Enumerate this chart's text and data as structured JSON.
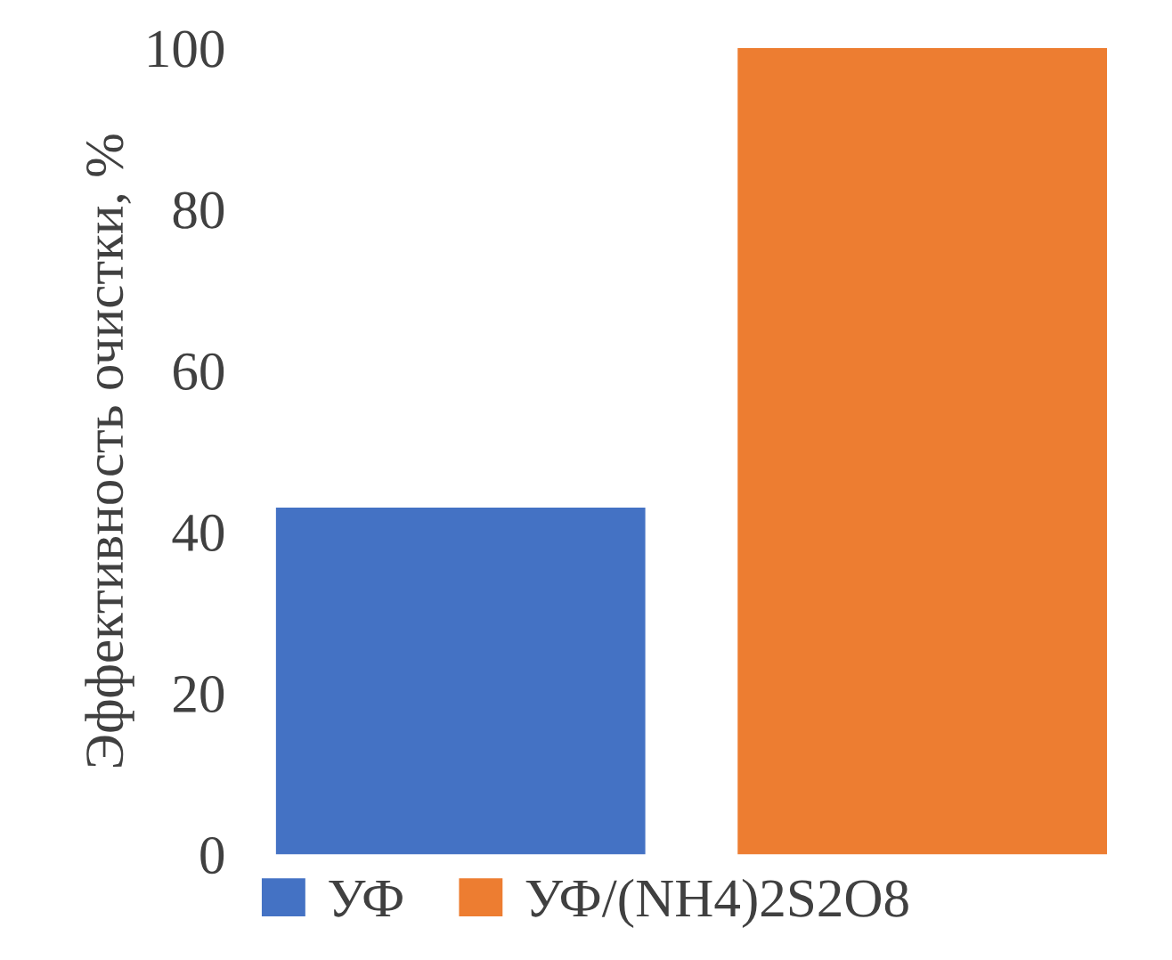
{
  "chart_data": {
    "type": "bar",
    "ylabel": "Эффективность очистки, %",
    "categories": [
      null
    ],
    "series": [
      {
        "name": "УФ",
        "color": "#4472c4",
        "values": [
          43
        ]
      },
      {
        "name": "УФ/(NH4)2S2O8",
        "color": "#ed7d31",
        "values": [
          100
        ]
      }
    ],
    "ylim": [
      0,
      100
    ],
    "yticks": [
      0,
      20,
      40,
      60,
      80,
      100
    ],
    "grid": false,
    "legend": "bottom"
  }
}
